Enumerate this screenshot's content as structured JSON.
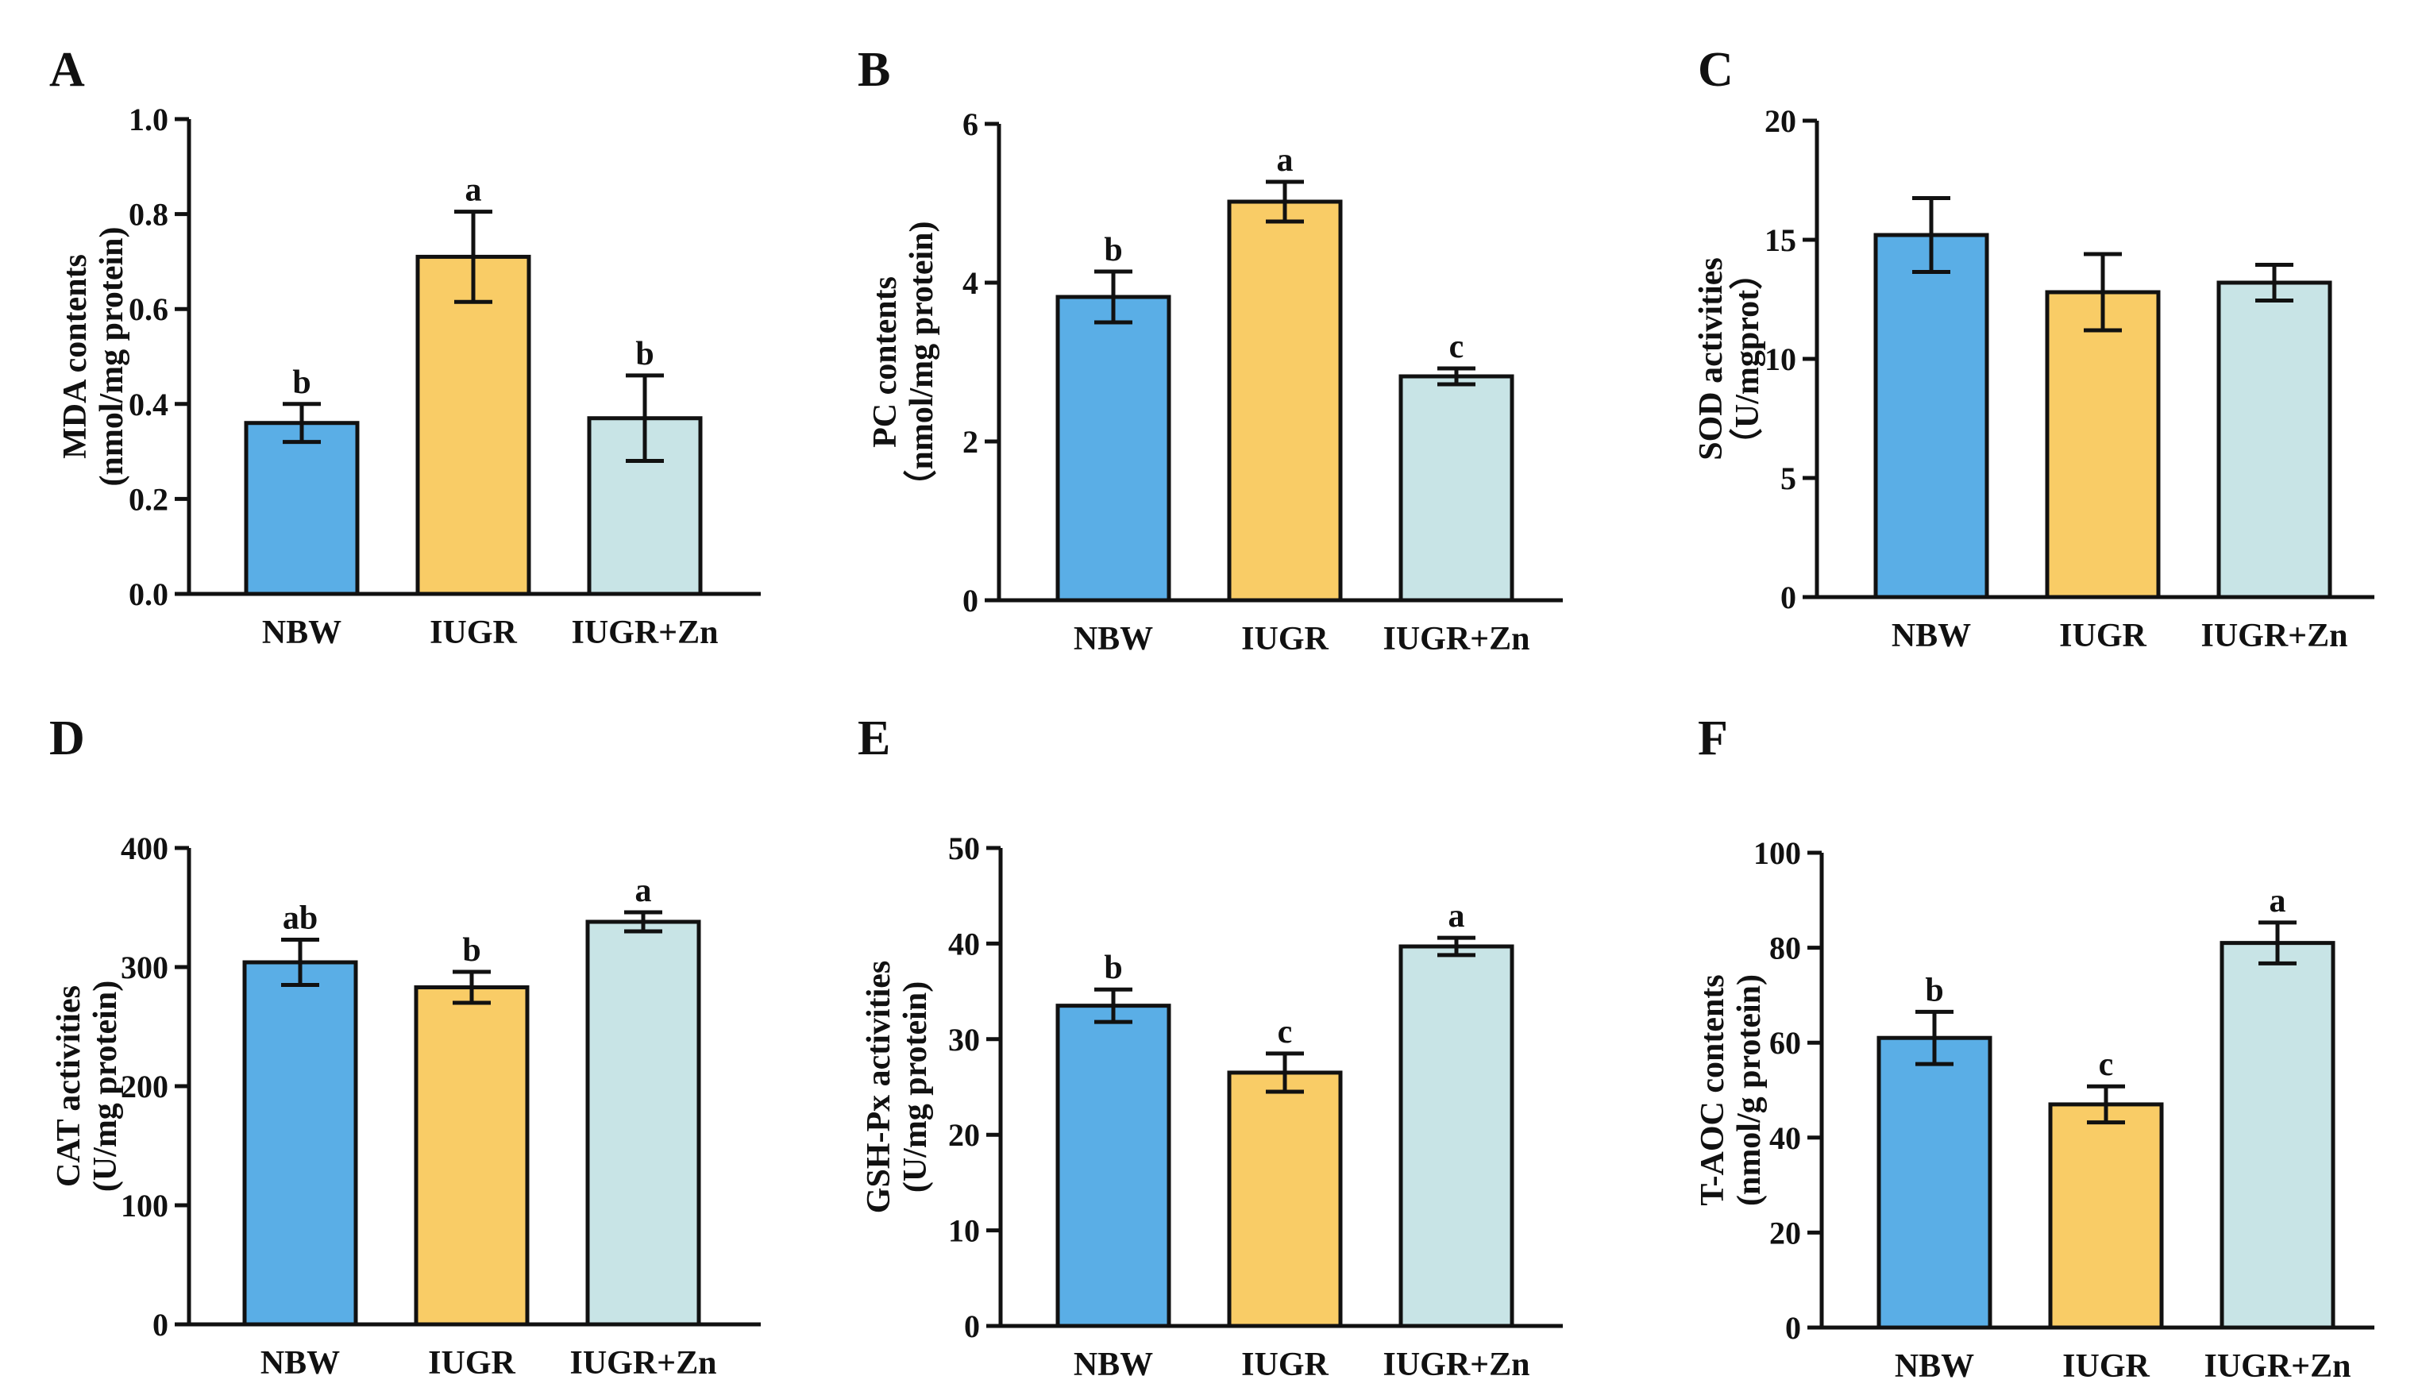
{
  "colors": {
    "NBW": "#5aaee6",
    "IUGR": "#f9cc66",
    "IUGR+Zn": "#c8e4e6",
    "axis": "#111111"
  },
  "chart_data": [
    {
      "panel": "A",
      "type": "bar",
      "title": "",
      "categories": [
        "NBW",
        "IUGR",
        "IUGR+Zn"
      ],
      "values": [
        0.36,
        0.71,
        0.37
      ],
      "errors": [
        0.04,
        0.095,
        0.09
      ],
      "significance": [
        "b",
        "a",
        "b"
      ],
      "ylabel_lines": [
        "MDA contents",
        "(nmol/mg protein)"
      ],
      "xlabel": "",
      "ylim": [
        0,
        1.0
      ],
      "yticks": [
        "0.0",
        "0.2",
        "0.4",
        "0.6",
        "0.8",
        "1.0"
      ]
    },
    {
      "panel": "B",
      "type": "bar",
      "title": "",
      "categories": [
        "NBW",
        "IUGR",
        "IUGR+Zn"
      ],
      "values": [
        3.82,
        5.02,
        2.82
      ],
      "errors": [
        0.32,
        0.25,
        0.1
      ],
      "significance": [
        "b",
        "a",
        "c"
      ],
      "ylabel_lines": [
        "PC contents",
        "（nmol/mg protein)"
      ],
      "xlabel": "",
      "ylim": [
        0,
        6
      ],
      "yticks": [
        "0",
        "2",
        "4",
        "6"
      ]
    },
    {
      "panel": "C",
      "type": "bar",
      "title": "",
      "categories": [
        "NBW",
        "IUGR",
        "IUGR+Zn"
      ],
      "values": [
        15.2,
        12.8,
        13.2
      ],
      "errors": [
        1.55,
        1.6,
        0.75
      ],
      "significance": [
        "",
        "",
        ""
      ],
      "ylabel_lines": [
        "SOD activities",
        "（U/mgprot）"
      ],
      "xlabel": "",
      "ylim": [
        0,
        20
      ],
      "yticks": [
        "0",
        "5",
        "10",
        "15",
        "20"
      ]
    },
    {
      "panel": "D",
      "type": "bar",
      "title": "",
      "categories": [
        "NBW",
        "IUGR",
        "IUGR+Zn"
      ],
      "values": [
        304,
        283,
        338
      ],
      "errors": [
        19,
        13,
        8
      ],
      "significance": [
        "ab",
        "b",
        "a"
      ],
      "ylabel_lines": [
        "CAT activities",
        "(U/mg protein)"
      ],
      "xlabel": "",
      "ylim": [
        0,
        400
      ],
      "yticks": [
        "0",
        "100",
        "200",
        "300",
        "400"
      ]
    },
    {
      "panel": "E",
      "type": "bar",
      "title": "",
      "categories": [
        "NBW",
        "IUGR",
        "IUGR+Zn"
      ],
      "values": [
        33.5,
        26.5,
        39.7
      ],
      "errors": [
        1.7,
        2.0,
        0.9
      ],
      "significance": [
        "b",
        "c",
        "a"
      ],
      "ylabel_lines": [
        "GSH-Px activities",
        "(U/mg protein)"
      ],
      "xlabel": "",
      "ylim": [
        0,
        50
      ],
      "yticks": [
        "0",
        "10",
        "20",
        "30",
        "40",
        "50"
      ]
    },
    {
      "panel": "F",
      "type": "bar",
      "title": "",
      "categories": [
        "NBW",
        "IUGR",
        "IUGR+Zn"
      ],
      "values": [
        61,
        47,
        81
      ],
      "errors": [
        5.5,
        3.8,
        4.3
      ],
      "significance": [
        "b",
        "c",
        "a"
      ],
      "ylabel_lines": [
        "T-AOC contents",
        "(nmol/g protein)"
      ],
      "xlabel": "",
      "ylim": [
        0,
        100
      ],
      "yticks": [
        "0",
        "20",
        "40",
        "60",
        "80",
        "100"
      ]
    }
  ]
}
